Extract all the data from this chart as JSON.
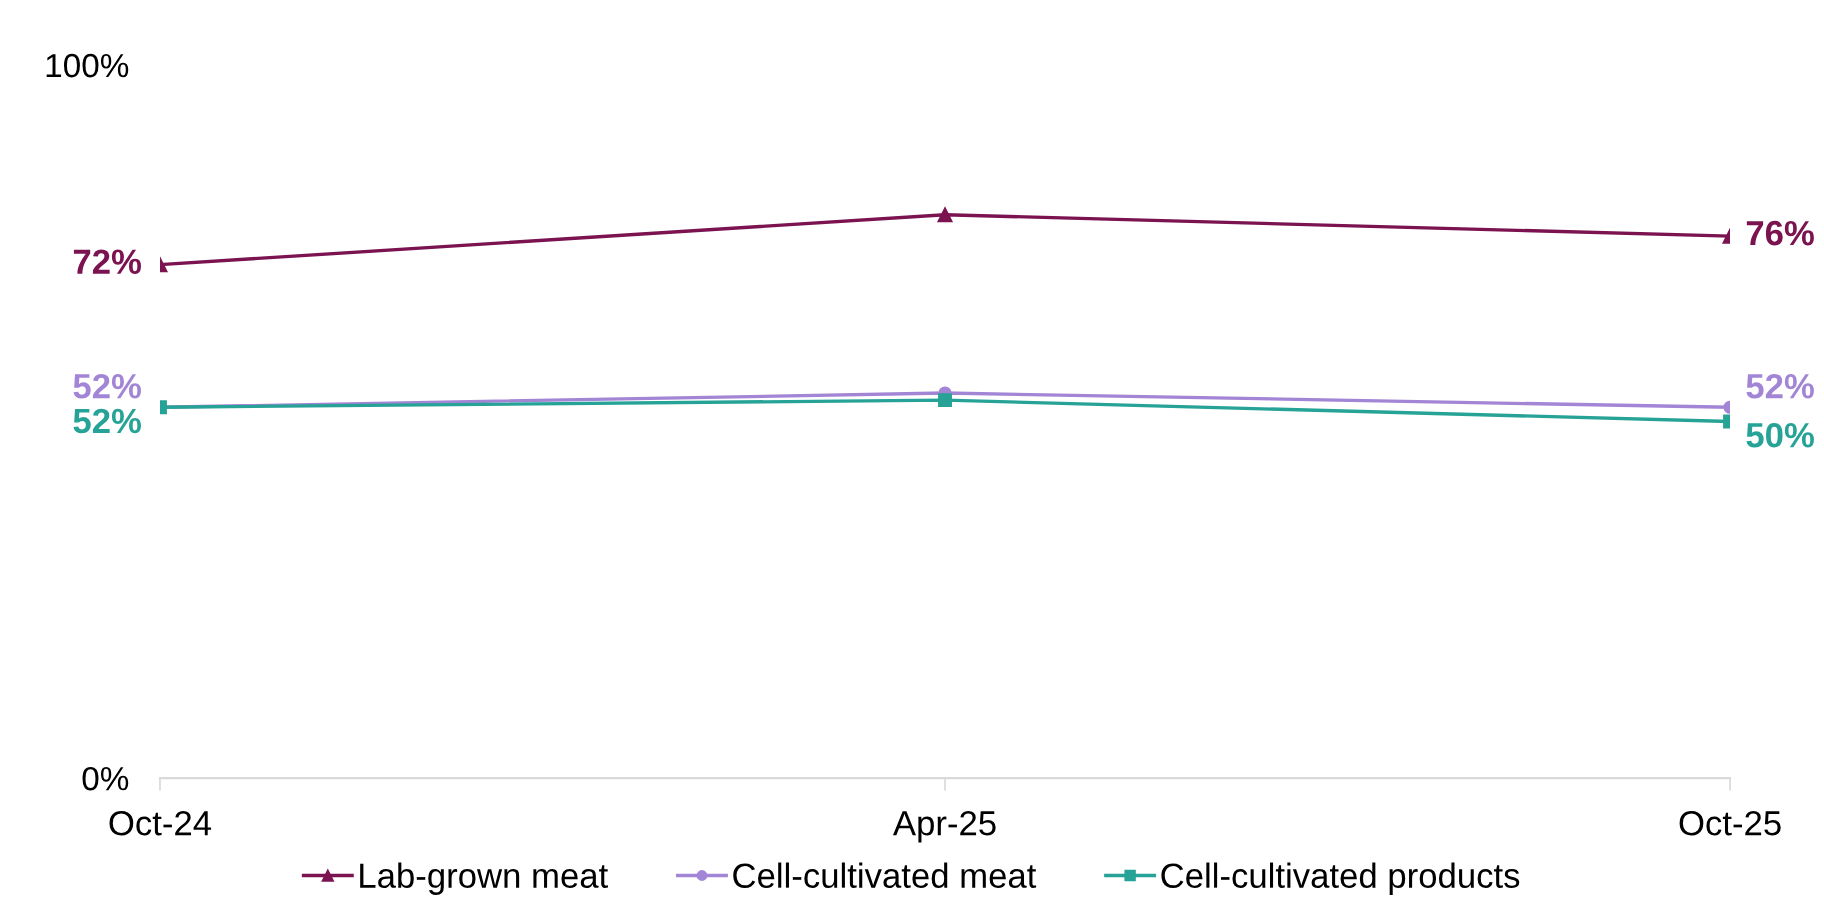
{
  "chart_data": {
    "type": "line",
    "categories": [
      "Oct-24",
      "Apr-25",
      "Oct-25"
    ],
    "series": [
      {
        "name": "Lab-grown meat",
        "color": "#7b1350",
        "marker": "triangle",
        "values": [
          72,
          79,
          76
        ],
        "value_labels": [
          "72%",
          null,
          "76%"
        ]
      },
      {
        "name": "Cell-cultivated meat",
        "color": "#a385d6",
        "marker": "circle",
        "values": [
          52,
          54,
          52
        ],
        "value_labels": [
          "52%",
          null,
          "52%"
        ]
      },
      {
        "name": "Cell-cultivated products",
        "color": "#26a396",
        "marker": "square",
        "values": [
          52,
          53,
          50
        ],
        "value_labels": [
          "52%",
          null,
          "50%"
        ]
      }
    ],
    "ylim": [
      0,
      100
    ],
    "yticks": [
      {
        "value": 0,
        "label": "0%"
      },
      {
        "value": 100,
        "label": "100%"
      }
    ],
    "legend": "bottom",
    "line_style": "solid"
  }
}
